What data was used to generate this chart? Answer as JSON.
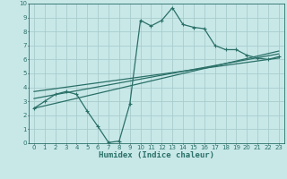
{
  "xlabel": "Humidex (Indice chaleur)",
  "ylabel": "",
  "xlim": [
    -0.5,
    23.5
  ],
  "ylim": [
    0,
    10
  ],
  "xticks": [
    0,
    1,
    2,
    3,
    4,
    5,
    6,
    7,
    8,
    9,
    10,
    11,
    12,
    13,
    14,
    15,
    16,
    17,
    18,
    19,
    20,
    21,
    22,
    23
  ],
  "yticks": [
    0,
    1,
    2,
    3,
    4,
    5,
    6,
    7,
    8,
    9,
    10
  ],
  "bg_color": "#c8e8e8",
  "grid_color": "#a8cccc",
  "line_color": "#2a7068",
  "line1_x": [
    0,
    1,
    2,
    3,
    4,
    5,
    6,
    7,
    8,
    9,
    10,
    11,
    12,
    13,
    14,
    15,
    16,
    17,
    18,
    19,
    20,
    21,
    22,
    23
  ],
  "line1_y": [
    2.5,
    3.0,
    3.5,
    3.7,
    3.5,
    2.3,
    1.2,
    0.05,
    0.15,
    2.8,
    8.8,
    8.4,
    8.8,
    9.7,
    8.5,
    8.3,
    8.2,
    7.0,
    6.7,
    6.7,
    6.3,
    6.1,
    6.0,
    6.2
  ],
  "line2_x": [
    0,
    23
  ],
  "line2_y": [
    2.5,
    6.6
  ],
  "line3_x": [
    0,
    23
  ],
  "line3_y": [
    3.2,
    6.4
  ],
  "line4_x": [
    0,
    23
  ],
  "line4_y": [
    3.7,
    6.1
  ]
}
